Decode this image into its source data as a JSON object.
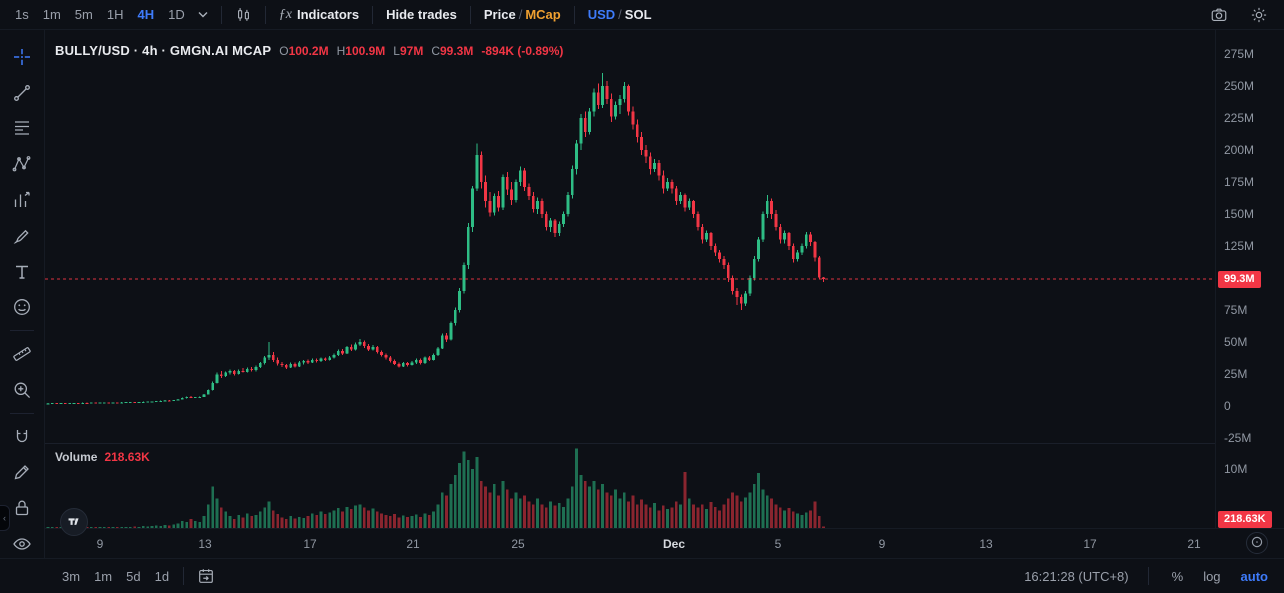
{
  "topbar": {
    "timeframes": [
      {
        "label": "1s",
        "active": false
      },
      {
        "label": "1m",
        "active": false
      },
      {
        "label": "5m",
        "active": false
      },
      {
        "label": "1H",
        "active": false
      },
      {
        "label": "4H",
        "active": true
      },
      {
        "label": "1D",
        "active": false
      }
    ],
    "indicators": {
      "icon": "ƒx",
      "label": "Indicators"
    },
    "hide_trades_label": "Hide trades",
    "price_mcap": {
      "price": "Price",
      "separator": "/",
      "mcap": "MCap"
    },
    "usd_sol": {
      "usd": "USD",
      "separator": "/",
      "sol": "SOL"
    }
  },
  "legend": {
    "title": "BULLY/USD · 4h · GMGN.AI MCAP",
    "o_label": "O",
    "o_value": "100.2M",
    "h_label": "H",
    "h_value": "100.9M",
    "l_label": "L",
    "l_value": "97M",
    "c_label": "C",
    "c_value": "99.3M",
    "change": "-894K (-0.89%)"
  },
  "volume_legend": {
    "label": "Volume",
    "value": "218.63K"
  },
  "price_axis": {
    "labels": [
      "275M",
      "250M",
      "225M",
      "200M",
      "175M",
      "150M",
      "125M",
      "100M",
      "75M",
      "50M",
      "25M",
      "0",
      "-25M"
    ],
    "current_price_badge": "99.3M",
    "volume_scale_label": "10M",
    "volume_badge": "218.63K"
  },
  "time_axis": {
    "ticks": [
      {
        "text": "9",
        "x": 100
      },
      {
        "text": "13",
        "x": 205
      },
      {
        "text": "17",
        "x": 310
      },
      {
        "text": "21",
        "x": 413
      },
      {
        "text": "25",
        "x": 518
      },
      {
        "text": "Dec",
        "x": 674,
        "bold": true
      },
      {
        "text": "5",
        "x": 778
      },
      {
        "text": "9",
        "x": 882
      },
      {
        "text": "13",
        "x": 986
      },
      {
        "text": "17",
        "x": 1090
      },
      {
        "text": "21",
        "x": 1194
      }
    ]
  },
  "bottom_bar": {
    "ranges": [
      "3m",
      "1m",
      "5d",
      "1d"
    ],
    "clock": "16:21:28 (UTC+8)",
    "percent_label": "%",
    "log_label": "log",
    "auto_label": "auto"
  },
  "colors": {
    "up": "#2ebd85",
    "down": "#f23645",
    "accent_blue": "#3e7bfa",
    "accent_orange": "#f0a030",
    "badge_red": "#f23645",
    "background": "#0d1016"
  },
  "chart_data": {
    "type": "candlestick",
    "symbol": "BULLY/USD",
    "interval": "4h",
    "unit": "market cap, millions USD",
    "ylim": [
      -25,
      275
    ],
    "price_line": 99.3,
    "x_axis_labels": [
      "9",
      "13",
      "17",
      "21",
      "25",
      "Dec",
      "5",
      "9",
      "13",
      "17",
      "21"
    ],
    "volume_axis_label": "10M",
    "last_ohlc": {
      "open": 100.2,
      "high": 100.9,
      "low": 97,
      "close": 99.3,
      "change": "-894K (-0.89%)",
      "volume_k": 218.63
    },
    "candles": [
      [
        2,
        2.2,
        1.9,
        2.1
      ],
      [
        2.1,
        2.3,
        2,
        2.2
      ],
      [
        2.2,
        2.3,
        2,
        2.1
      ],
      [
        2.1,
        2.4,
        2.1,
        2.3
      ],
      [
        2.3,
        2.4,
        2.1,
        2.2
      ],
      [
        2.2,
        2.4,
        2.1,
        2.3
      ],
      [
        2.3,
        2.5,
        2.2,
        2.4
      ],
      [
        2.4,
        2.5,
        2.2,
        2.3
      ],
      [
        2.3,
        2.6,
        2.3,
        2.5
      ],
      [
        2.5,
        2.6,
        2.3,
        2.4
      ],
      [
        2.4,
        2.7,
        2.4,
        2.6
      ],
      [
        2.6,
        2.7,
        2.4,
        2.5
      ],
      [
        2.5,
        2.7,
        2.4,
        2.6
      ],
      [
        2.6,
        2.8,
        2.5,
        2.7
      ],
      [
        2.7,
        2.8,
        2.5,
        2.6
      ],
      [
        2.6,
        2.9,
        2.6,
        2.8
      ],
      [
        2.8,
        2.9,
        2.6,
        2.7
      ],
      [
        2.7,
        3,
        2.7,
        2.9
      ],
      [
        2.9,
        3.1,
        2.8,
        3
      ],
      [
        3,
        3.2,
        2.9,
        3.1
      ],
      [
        3.1,
        3.2,
        2.9,
        3
      ],
      [
        3,
        3.3,
        3,
        3.2
      ],
      [
        3.2,
        3.4,
        3.1,
        3.3
      ],
      [
        3.3,
        3.5,
        3.2,
        3.4
      ],
      [
        3.4,
        3.7,
        3.3,
        3.6
      ],
      [
        3.6,
        4,
        3.5,
        3.9
      ],
      [
        3.9,
        4.2,
        3.7,
        4.1
      ],
      [
        4.1,
        4.5,
        3.9,
        4.3
      ],
      [
        4.3,
        4.6,
        4,
        4.2
      ],
      [
        4.2,
        4.8,
        4.1,
        4.6
      ],
      [
        4.6,
        5.4,
        4.5,
        5.2
      ],
      [
        5.2,
        6.6,
        5.1,
        6.3
      ],
      [
        6.3,
        7.4,
        6,
        7
      ],
      [
        7,
        7.8,
        6.4,
        6.7
      ],
      [
        6.7,
        7.2,
        6.2,
        6.9
      ],
      [
        6.9,
        7.4,
        6.5,
        7.2
      ],
      [
        7.2,
        9.5,
        7,
        9
      ],
      [
        9,
        13,
        8.8,
        12.5
      ],
      [
        12.5,
        19,
        12,
        18
      ],
      [
        18,
        26,
        17.5,
        24.5
      ],
      [
        24.5,
        27.5,
        22,
        23.5
      ],
      [
        23.5,
        27,
        22.5,
        26
      ],
      [
        26,
        28.5,
        24.5,
        27.5
      ],
      [
        27.5,
        28,
        24,
        25
      ],
      [
        25,
        28.5,
        24.5,
        27.5
      ],
      [
        27.5,
        29.5,
        26,
        26.5
      ],
      [
        26.5,
        30,
        26,
        29
      ],
      [
        29,
        30.5,
        27,
        28
      ],
      [
        28,
        31.5,
        27,
        30.5
      ],
      [
        30.5,
        34.5,
        29.5,
        33.5
      ],
      [
        33.5,
        39,
        32.5,
        38
      ],
      [
        38,
        50,
        36,
        40
      ],
      [
        40,
        42,
        34.5,
        36
      ],
      [
        36,
        38,
        31.5,
        33
      ],
      [
        33,
        34.5,
        30.5,
        32
      ],
      [
        32,
        33,
        29,
        30
      ],
      [
        30,
        34,
        29.5,
        33
      ],
      [
        33,
        34,
        30,
        31
      ],
      [
        31,
        35,
        30.5,
        34
      ],
      [
        34,
        36,
        32.5,
        35
      ],
      [
        35,
        36.5,
        33,
        34
      ],
      [
        34,
        37,
        33.5,
        36
      ],
      [
        36,
        37,
        34,
        35
      ],
      [
        35,
        38,
        34.5,
        37
      ],
      [
        37,
        38,
        35,
        36
      ],
      [
        36,
        39,
        35.5,
        38
      ],
      [
        38,
        41,
        37,
        40
      ],
      [
        40,
        44,
        39,
        43
      ],
      [
        43,
        44.5,
        40,
        41
      ],
      [
        41,
        47,
        40.5,
        46
      ],
      [
        46,
        48,
        43,
        44
      ],
      [
        44,
        49.5,
        43.5,
        48
      ],
      [
        48,
        52.5,
        47,
        50
      ],
      [
        50,
        51,
        45.5,
        47
      ],
      [
        47,
        48.5,
        43,
        44
      ],
      [
        44,
        47.5,
        43.5,
        46
      ],
      [
        46,
        47,
        41,
        42
      ],
      [
        42,
        43.5,
        38.5,
        40
      ],
      [
        40,
        41,
        36.5,
        38
      ],
      [
        38,
        39,
        34,
        35
      ],
      [
        35,
        36.5,
        32,
        33
      ],
      [
        33,
        34,
        30,
        31
      ],
      [
        31,
        34.5,
        30.5,
        33.5
      ],
      [
        33.5,
        34.5,
        31,
        32
      ],
      [
        32,
        35,
        31.5,
        34
      ],
      [
        34,
        37,
        33,
        36
      ],
      [
        36,
        37,
        32.5,
        33.5
      ],
      [
        33.5,
        38.5,
        33,
        38
      ],
      [
        38,
        39,
        35,
        36
      ],
      [
        36,
        41,
        35.5,
        40
      ],
      [
        40,
        46,
        39,
        45
      ],
      [
        45,
        56.5,
        44.5,
        55
      ],
      [
        55,
        57,
        50,
        52
      ],
      [
        52,
        66,
        51,
        65
      ],
      [
        65,
        77,
        63,
        75
      ],
      [
        75,
        92,
        73,
        90
      ],
      [
        90,
        112,
        88,
        110
      ],
      [
        110,
        143,
        107,
        140
      ],
      [
        140,
        172,
        136,
        170
      ],
      [
        170,
        205,
        168,
        196
      ],
      [
        196,
        199,
        170,
        175
      ],
      [
        175,
        180,
        155,
        160
      ],
      [
        160,
        167,
        148,
        151
      ],
      [
        151,
        166,
        149,
        164
      ],
      [
        164,
        168,
        152,
        155
      ],
      [
        155,
        181,
        153,
        179
      ],
      [
        179,
        183,
        165,
        169
      ],
      [
        169,
        175,
        157,
        161
      ],
      [
        161,
        177,
        159,
        175
      ],
      [
        175,
        187,
        172,
        184
      ],
      [
        184,
        186,
        168,
        171
      ],
      [
        171,
        174,
        161,
        164
      ],
      [
        164,
        167,
        151,
        154
      ],
      [
        154,
        163,
        150,
        160
      ],
      [
        160,
        162,
        147,
        150
      ],
      [
        150,
        152,
        137,
        140
      ],
      [
        140,
        147,
        136,
        145
      ],
      [
        145,
        146,
        132,
        135
      ],
      [
        135,
        144,
        133,
        142
      ],
      [
        142,
        152,
        140,
        150
      ],
      [
        150,
        167,
        148,
        165
      ],
      [
        165,
        188,
        162,
        185
      ],
      [
        185,
        208,
        181,
        205
      ],
      [
        205,
        228,
        200,
        225
      ],
      [
        225,
        230,
        210,
        214
      ],
      [
        214,
        233,
        212,
        230
      ],
      [
        230,
        248,
        226,
        245
      ],
      [
        245,
        252,
        232,
        235
      ],
      [
        235,
        260,
        233,
        250
      ],
      [
        250,
        254,
        236,
        240
      ],
      [
        240,
        244,
        222,
        226
      ],
      [
        226,
        238,
        224,
        235
      ],
      [
        235,
        243,
        228,
        240
      ],
      [
        240,
        253,
        237,
        250
      ],
      [
        250,
        251,
        227,
        230
      ],
      [
        230,
        234,
        216,
        220
      ],
      [
        220,
        224,
        206,
        210
      ],
      [
        210,
        214,
        196,
        200
      ],
      [
        200,
        204,
        190,
        195
      ],
      [
        195,
        198,
        181,
        185
      ],
      [
        185,
        193,
        183,
        190
      ],
      [
        190,
        192,
        176,
        180
      ],
      [
        180,
        184,
        166,
        170
      ],
      [
        170,
        178,
        168,
        175
      ],
      [
        175,
        177,
        166,
        170
      ],
      [
        170,
        172,
        157,
        160
      ],
      [
        160,
        167,
        158,
        165
      ],
      [
        165,
        166,
        152,
        155
      ],
      [
        155,
        162,
        153,
        160
      ],
      [
        160,
        161,
        147,
        150
      ],
      [
        150,
        152,
        137,
        140
      ],
      [
        140,
        142,
        127,
        130
      ],
      [
        130,
        137,
        128,
        135
      ],
      [
        135,
        136,
        122,
        125
      ],
      [
        125,
        127,
        117,
        120
      ],
      [
        120,
        122,
        112,
        115
      ],
      [
        115,
        117,
        107,
        110
      ],
      [
        110,
        112,
        97,
        100
      ],
      [
        100,
        102,
        87,
        90
      ],
      [
        90,
        92,
        79,
        85
      ],
      [
        85,
        87,
        75,
        80
      ],
      [
        80,
        90,
        78,
        88
      ],
      [
        88,
        102,
        86,
        100
      ],
      [
        100,
        117,
        98,
        115
      ],
      [
        115,
        132,
        113,
        130
      ],
      [
        130,
        152,
        128,
        150
      ],
      [
        150,
        165,
        147,
        160
      ],
      [
        160,
        162,
        146,
        150
      ],
      [
        150,
        153,
        137,
        140
      ],
      [
        140,
        142,
        127,
        130
      ],
      [
        130,
        137,
        127,
        135
      ],
      [
        135,
        136,
        122,
        125
      ],
      [
        125,
        127,
        112,
        115
      ],
      [
        115,
        122,
        113,
        120
      ],
      [
        120,
        127,
        118,
        125
      ],
      [
        125,
        136,
        123,
        134
      ],
      [
        134,
        136,
        125,
        128
      ],
      [
        128,
        129,
        113,
        116
      ],
      [
        116,
        117,
        99,
        100.2
      ],
      [
        100.2,
        100.9,
        97,
        99.3
      ]
    ],
    "volumes": [
      0.05,
      0.08,
      0.06,
      0.1,
      0.07,
      0.09,
      0.1,
      0.08,
      0.12,
      0.09,
      0.11,
      0.1,
      0.12,
      0.15,
      0.1,
      0.14,
      0.12,
      0.16,
      0.2,
      0.15,
      0.25,
      0.2,
      0.3,
      0.25,
      0.3,
      0.4,
      0.35,
      0.5,
      0.45,
      0.6,
      0.8,
      1.2,
      1,
      1.5,
      1.2,
      1,
      2,
      4,
      7,
      5,
      3.5,
      2.8,
      2,
      1.5,
      2.2,
      1.8,
      2.5,
      2,
      2.2,
      2.8,
      3.5,
      4.5,
      3,
      2.4,
      1.8,
      1.5,
      2,
      1.6,
      1.9,
      1.7,
      2,
      2.5,
      2.2,
      2.8,
      2.4,
      2.6,
      3,
      3.4,
      2.8,
      3.6,
      3.2,
      3.8,
      4,
      3.5,
      3,
      3.3,
      2.8,
      2.5,
      2.2,
      2,
      2.4,
      1.8,
      2.1,
      1.9,
      2,
      2.3,
      1.9,
      2.5,
      2.2,
      2.8,
      4,
      6,
      5.5,
      7.5,
      9,
      11,
      13,
      11.5,
      10,
      12,
      8,
      7,
      6,
      7.5,
      5.5,
      8,
      6.5,
      5,
      6,
      5,
      5.5,
      4.5,
      4,
      5,
      4,
      3.5,
      4.5,
      3.8,
      4.2,
      3.6,
      5,
      7,
      13.5,
      9,
      8,
      7,
      8,
      6.5,
      7.5,
      6,
      5.5,
      6.5,
      5,
      6,
      4.5,
      5.5,
      4,
      4.8,
      4,
      3.5,
      4.2,
      3,
      3.8,
      3.2,
      3.5,
      4.5,
      4,
      9.5,
      5,
      4,
      3.5,
      4,
      3.2,
      4.4,
      3.6,
      3,
      4,
      5,
      6,
      5.5,
      4.5,
      5.2,
      6,
      7.5,
      9.3,
      6.5,
      5.5,
      5,
      4,
      3.5,
      3,
      3.4,
      2.8,
      2.5,
      2.2,
      2.6,
      3,
      4.5,
      2,
      0.22
    ]
  }
}
